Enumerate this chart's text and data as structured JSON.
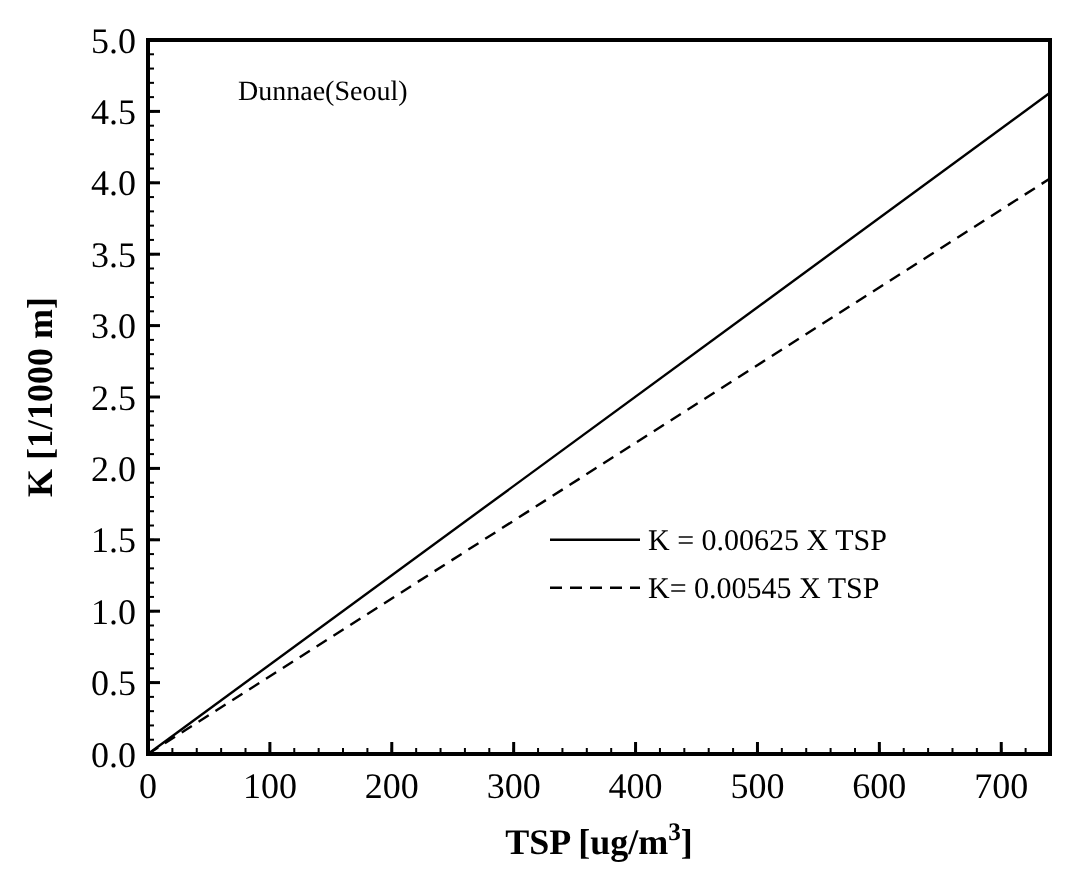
{
  "chart_data": {
    "type": "line",
    "xlabel": "TSP [ug/m$^{3}$]",
    "ylabel": "K [1/1000 m]",
    "annotations": [
      "Dunnae(Seoul)"
    ],
    "xlim": [
      0,
      740
    ],
    "xticks": [
      0,
      100,
      200,
      300,
      400,
      500,
      600,
      700
    ],
    "ylim": [
      0,
      5
    ],
    "yticks": [
      {
        "value": 0,
        "label": "0.0"
      },
      {
        "value": 0.5,
        "label": "0.5"
      },
      {
        "value": 1,
        "label": "1.0"
      },
      {
        "value": 1.5,
        "label": "1.5"
      },
      {
        "value": 2,
        "label": "2.0"
      },
      {
        "value": 2.5,
        "label": "2.5"
      },
      {
        "value": 3,
        "label": "3.0"
      },
      {
        "value": 3.5,
        "label": "3.5"
      },
      {
        "value": 4,
        "label": "4.0"
      },
      {
        "value": 4.5,
        "label": "4.5"
      },
      {
        "value": 5,
        "label": "5.0"
      }
    ],
    "x": [
      0,
      740
    ],
    "legend": "right",
    "grid": false,
    "marker": "none",
    "series": [
      {
        "name": "K = 0.00625 X TSP",
        "color": "#000000",
        "values": [
          0,
          4.63
        ],
        "line_style": "solid"
      },
      {
        "name": "K= 0.00545 X TSP",
        "color": "#000000",
        "values": [
          0,
          4.03
        ],
        "line_style": "dashed"
      }
    ]
  }
}
